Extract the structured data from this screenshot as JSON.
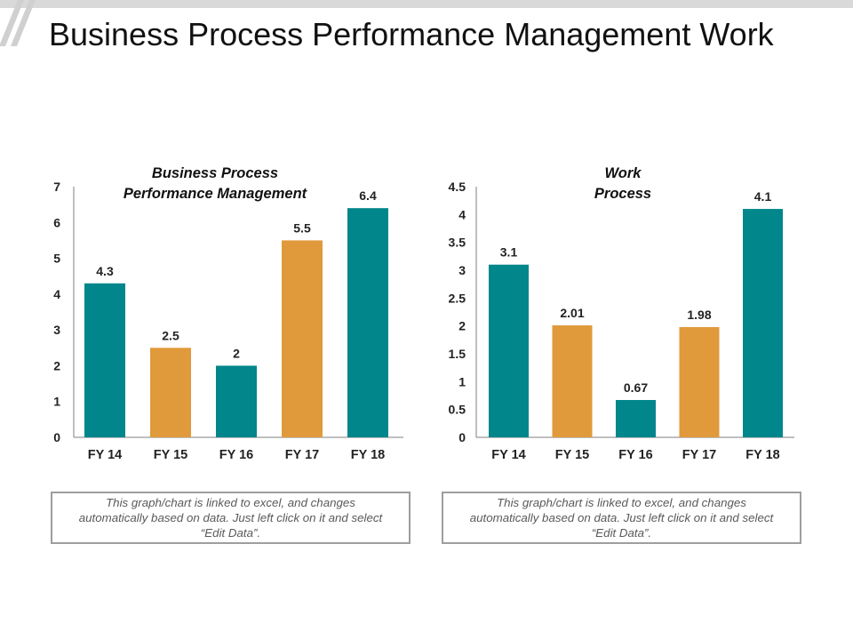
{
  "page": {
    "title": "Business Process Performance Management Work"
  },
  "colors": {
    "teal": "#00868b",
    "orange": "#e09a3b",
    "axis": "#7f7f7f",
    "note_border": "#9e9e9e"
  },
  "notes": [
    "This graph/chart is linked to excel, and changes automatically based on data. Just left click on it and select “Edit Data”.",
    "This graph/chart is linked to excel, and changes automatically based on data. Just left click on it and select “Edit Data”."
  ],
  "chart_data": [
    {
      "type": "bar",
      "title_lines": [
        "Business Process",
        "Performance Management"
      ],
      "categories": [
        "FY 14",
        "FY 15",
        "FY 16",
        "FY 17",
        "FY 18"
      ],
      "values": [
        4.3,
        2.5,
        2,
        5.5,
        6.4
      ],
      "value_labels": [
        "4.3",
        "2.5",
        "2",
        "5.5",
        "6.4"
      ],
      "bar_colors": [
        "teal",
        "orange",
        "teal",
        "orange",
        "teal"
      ],
      "ylim": [
        0,
        7
      ],
      "yticks": [
        "0",
        "1",
        "2",
        "3",
        "4",
        "5",
        "6",
        "7"
      ],
      "legend": "none",
      "grid": false
    },
    {
      "type": "bar",
      "title_lines": [
        "Work",
        "Process"
      ],
      "categories": [
        "FY 14",
        "FY 15",
        "FY 16",
        "FY 17",
        "FY 18"
      ],
      "values": [
        3.1,
        2.01,
        0.67,
        1.98,
        4.1
      ],
      "value_labels": [
        "3.1",
        "2.01",
        "0.67",
        "1.98",
        "4.1"
      ],
      "bar_colors": [
        "teal",
        "orange",
        "teal",
        "orange",
        "teal"
      ],
      "ylim": [
        0,
        4.5
      ],
      "yticks": [
        "0",
        "0.5",
        "1",
        "1.5",
        "2",
        "2.5",
        "3",
        "3.5",
        "4",
        "4.5"
      ],
      "legend": "none",
      "grid": false
    }
  ]
}
